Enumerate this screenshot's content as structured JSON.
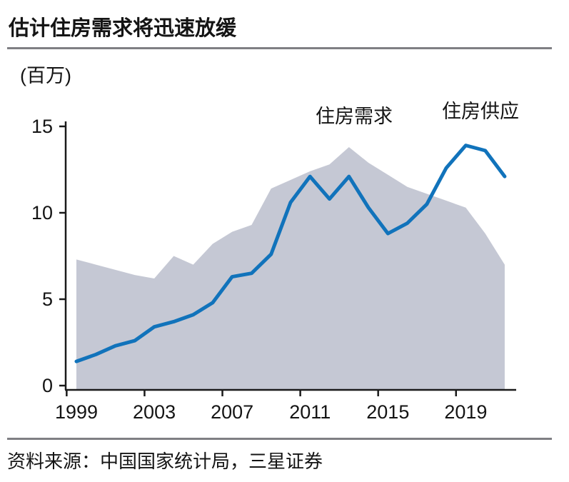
{
  "header": {
    "title": "估计住房需求将迅速放缓"
  },
  "source": {
    "text": "资料来源：中国国家统计局，三星证券"
  },
  "chart_data": {
    "type": "combo",
    "title": "估计住房需求将迅速放缓",
    "unit_label": "(百万)",
    "xlabel": "",
    "ylabel": "(百万)",
    "x": [
      1999,
      2000,
      2001,
      2002,
      2003,
      2004,
      2005,
      2006,
      2007,
      2008,
      2009,
      2010,
      2011,
      2012,
      2013,
      2014,
      2015,
      2016,
      2017,
      2018,
      2019,
      2020,
      2021
    ],
    "series": [
      {
        "name": "住房需求",
        "type": "area",
        "color": "#c5c8d4",
        "values": [
          7.3,
          7.0,
          6.7,
          6.4,
          6.2,
          7.5,
          7.0,
          8.2,
          8.9,
          9.3,
          11.4,
          11.9,
          12.4,
          12.8,
          13.8,
          12.9,
          12.2,
          11.5,
          11.1,
          10.7,
          10.3,
          8.8,
          7.0
        ]
      },
      {
        "name": "住房供应",
        "type": "line",
        "color": "#1173bb",
        "values": [
          1.4,
          1.8,
          2.3,
          2.6,
          3.4,
          3.7,
          4.1,
          4.8,
          6.3,
          6.5,
          7.6,
          10.6,
          12.1,
          10.8,
          12.1,
          10.3,
          8.8,
          9.4,
          10.5,
          12.6,
          13.9,
          13.6,
          12.1
        ]
      }
    ],
    "ylim": [
      0,
      15
    ],
    "yticks": [
      0,
      5,
      10,
      15
    ],
    "xticks": [
      1999,
      2003,
      2007,
      2011,
      2015,
      2019
    ],
    "grid": false,
    "legend_position": "inline-labels-above-series",
    "axis_color": "#1a1a1a",
    "tick_label_color": "#141414"
  }
}
